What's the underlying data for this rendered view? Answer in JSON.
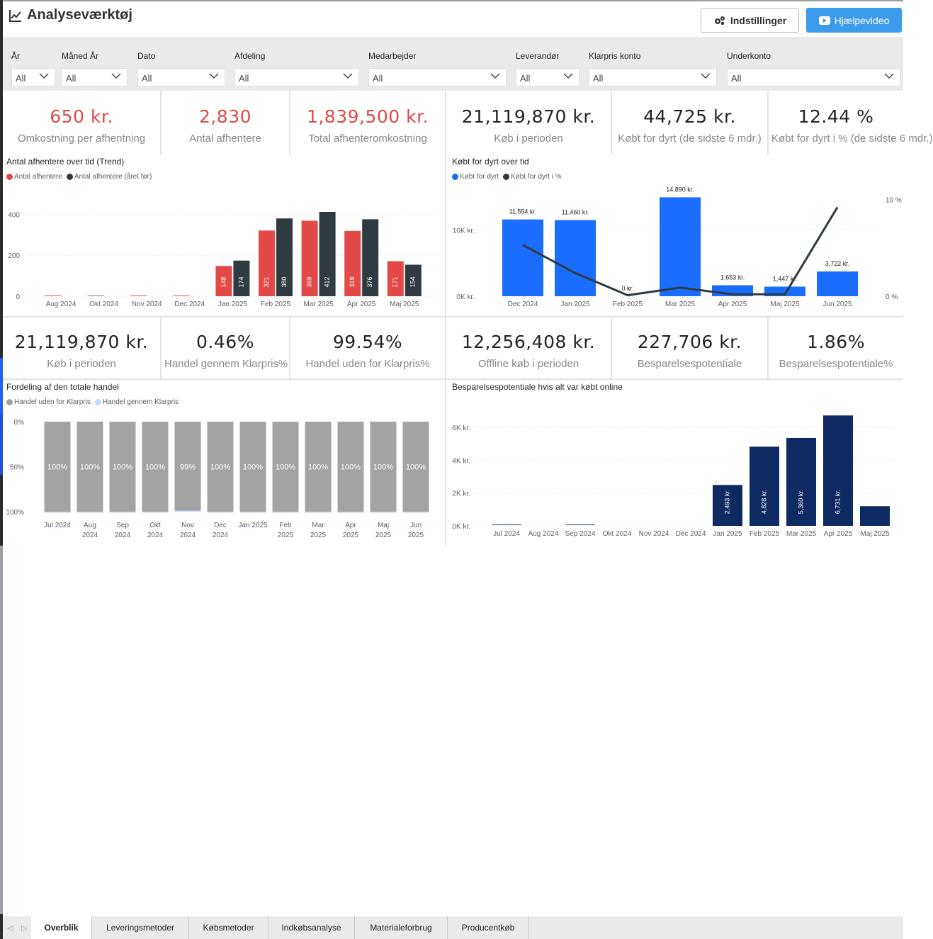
{
  "header": {
    "title": "Analyseværktøj",
    "settings_label": "Indstillinger",
    "help_label": "Hjælpevideo"
  },
  "filters": [
    {
      "label": "År",
      "value": "All"
    },
    {
      "label": "Måned År",
      "value": "All"
    },
    {
      "label": "Dato",
      "value": "All"
    },
    {
      "label": "Afdeling",
      "value": "All"
    },
    {
      "label": "Medarbejder",
      "value": "All"
    },
    {
      "label": "Leverandør",
      "value": "All"
    },
    {
      "label": "Klarpris konto",
      "value": "All"
    },
    {
      "label": "Underkonto",
      "value": "All"
    }
  ],
  "kpis_top": [
    {
      "value": "650 kr.",
      "label": "Omkostning per afhentning"
    },
    {
      "value": "2,830",
      "label": "Antal afhentere"
    },
    {
      "value": "1,839,500 kr.",
      "label": "Total afhenteromkostning"
    },
    {
      "value": "21,119,870 kr.",
      "label": "Køb i perioden"
    },
    {
      "value": "44,725 kr.",
      "label": "Købt for dyrt (de sidste 6 mdr.)"
    },
    {
      "value": "12.44 %",
      "label": "Købt for dyrt i % (de sidste 6 mdr.)"
    }
  ],
  "kpis_mid": [
    {
      "value": "21,119,870 kr.",
      "label": "Køb i perioden"
    },
    {
      "value": "0.46%",
      "label": "Handel gennem Klarpris%"
    },
    {
      "value": "99.54%",
      "label": "Handel uden for Klarpris%"
    },
    {
      "value": "12,256,408 kr.",
      "label": "Offline køb i perioden"
    },
    {
      "value": "227,706 kr.",
      "label": "Besparelsespotentiale"
    },
    {
      "value": "1.86%",
      "label": "Besparelsespotentiale%"
    }
  ],
  "colors": {
    "red": "#e34947",
    "dark_series": "#2f3b40",
    "blue_bar": "#1a6dff",
    "grey_bar": "#a3a3a3",
    "light_blue": "#c6dafc",
    "navy_bar": "#0e2a63",
    "help_button": "#3c9bea"
  },
  "icons": {
    "title_icon": "line-chart-icon",
    "settings_icon": "gears-icon",
    "help_icon": "youtube-play-icon"
  },
  "chart_data": [
    {
      "type": "bar",
      "title": "Antal afhentere over tid (Trend)",
      "categories": [
        "Aug 2024",
        "Okt 2024",
        "Nov 2024",
        "Dec 2024",
        "Jan 2025",
        "Feb 2025",
        "Mar 2025",
        "Apr 2025",
        "Maj 2025"
      ],
      "series": [
        {
          "name": "Antal afhentere",
          "values": [
            2,
            2,
            2,
            2,
            148,
            321,
            369,
            319,
            171
          ]
        },
        {
          "name": "Antal afhentere (året før)",
          "values": [
            0,
            0,
            0,
            0,
            174,
            380,
            412,
            376,
            154
          ]
        }
      ],
      "data_labels_shown": [
        false,
        false,
        false,
        false,
        true,
        true,
        true,
        true,
        true
      ],
      "yticks": [
        "0",
        "200",
        "400"
      ],
      "ylim": [
        0,
        450
      ],
      "legend": "top-left"
    },
    {
      "type": "bar",
      "title": "Købt for dyrt over tid",
      "categories": [
        "Dec 2024",
        "Jan 2025",
        "Feb 2025",
        "Mar 2025",
        "Apr 2025",
        "Maj 2025",
        "Jun 2025"
      ],
      "series": [
        {
          "name": "Købt for dyrt",
          "values": [
            11554,
            11460,
            0,
            14890,
            1653,
            1447,
            3722
          ]
        },
        {
          "name": "Købt for dyrt i %",
          "values": [
            5.3,
            2.4,
            0.1,
            0.9,
            0.2,
            0.2,
            9.2
          ]
        }
      ],
      "data_labels": [
        "11,554 kr.",
        "11,460 kr.",
        "0 kr.",
        "14,890 kr.",
        "1,653 kr.",
        "1,447 kr.",
        "3,722 kr."
      ],
      "yticks": [
        "0K kr.",
        "10K kr."
      ],
      "ylim": [
        0,
        16000
      ],
      "y2ticks": [
        "0 %",
        "10 %"
      ],
      "y2lim": [
        0,
        11
      ],
      "legend": "top-left"
    },
    {
      "type": "bar",
      "title": "Fordeling af den totale handel",
      "categories": [
        "Jul 2024",
        "Aug 2024",
        "Sep 2024",
        "Okt 2024",
        "Nov 2024",
        "Dec 2024",
        "Jan 2025",
        "Feb 2025",
        "Mar 2025",
        "Apr 2025",
        "Maj 2025",
        "Jun 2025"
      ],
      "series": [
        {
          "name": "Handel uden for Klarpris",
          "values": [
            100,
            100,
            100,
            100,
            99,
            100,
            100,
            100,
            100,
            100,
            100,
            100
          ]
        },
        {
          "name": "Handel gennem Klarpris",
          "values": [
            0,
            0,
            0,
            0,
            1,
            0,
            0,
            0,
            0,
            0,
            0,
            0
          ]
        }
      ],
      "data_labels": [
        "100%",
        "100%",
        "100%",
        "100%",
        "99%",
        "100%",
        "100%",
        "100%",
        "100%",
        "100%",
        "100%",
        "100%"
      ],
      "yticks": [
        "0%",
        "50%",
        "100%"
      ],
      "legend": "top-left"
    },
    {
      "type": "bar",
      "title": "Besparelsespotentiale hvis alt var købt online",
      "categories": [
        "Jul 2024",
        "Aug 2024",
        "Sep 2024",
        "Okt 2024",
        "Nov 2024",
        "Dec 2024",
        "Jan 2025",
        "Feb 2025",
        "Mar 2025",
        "Apr 2025",
        "Maj 2025"
      ],
      "values": [
        60,
        0,
        60,
        0,
        0,
        0,
        2493,
        4828,
        5360,
        6731,
        1200
      ],
      "data_labels": [
        "",
        "",
        "",
        "",
        "",
        "",
        "2,493 kr.",
        "4,828 kr.",
        "5,360 kr.",
        "6,731 kr.",
        ""
      ],
      "yticks": [
        "0K kr.",
        "2K kr.",
        "4K kr.",
        "6K kr."
      ],
      "ylim": [
        0,
        7000
      ]
    }
  ],
  "tabs": [
    "Overblik",
    "Leveringsmetoder",
    "Købsmetoder",
    "Indkøbsanalyse",
    "Materialeforbrug",
    "Producentkøb"
  ],
  "active_tab": "Overblik"
}
